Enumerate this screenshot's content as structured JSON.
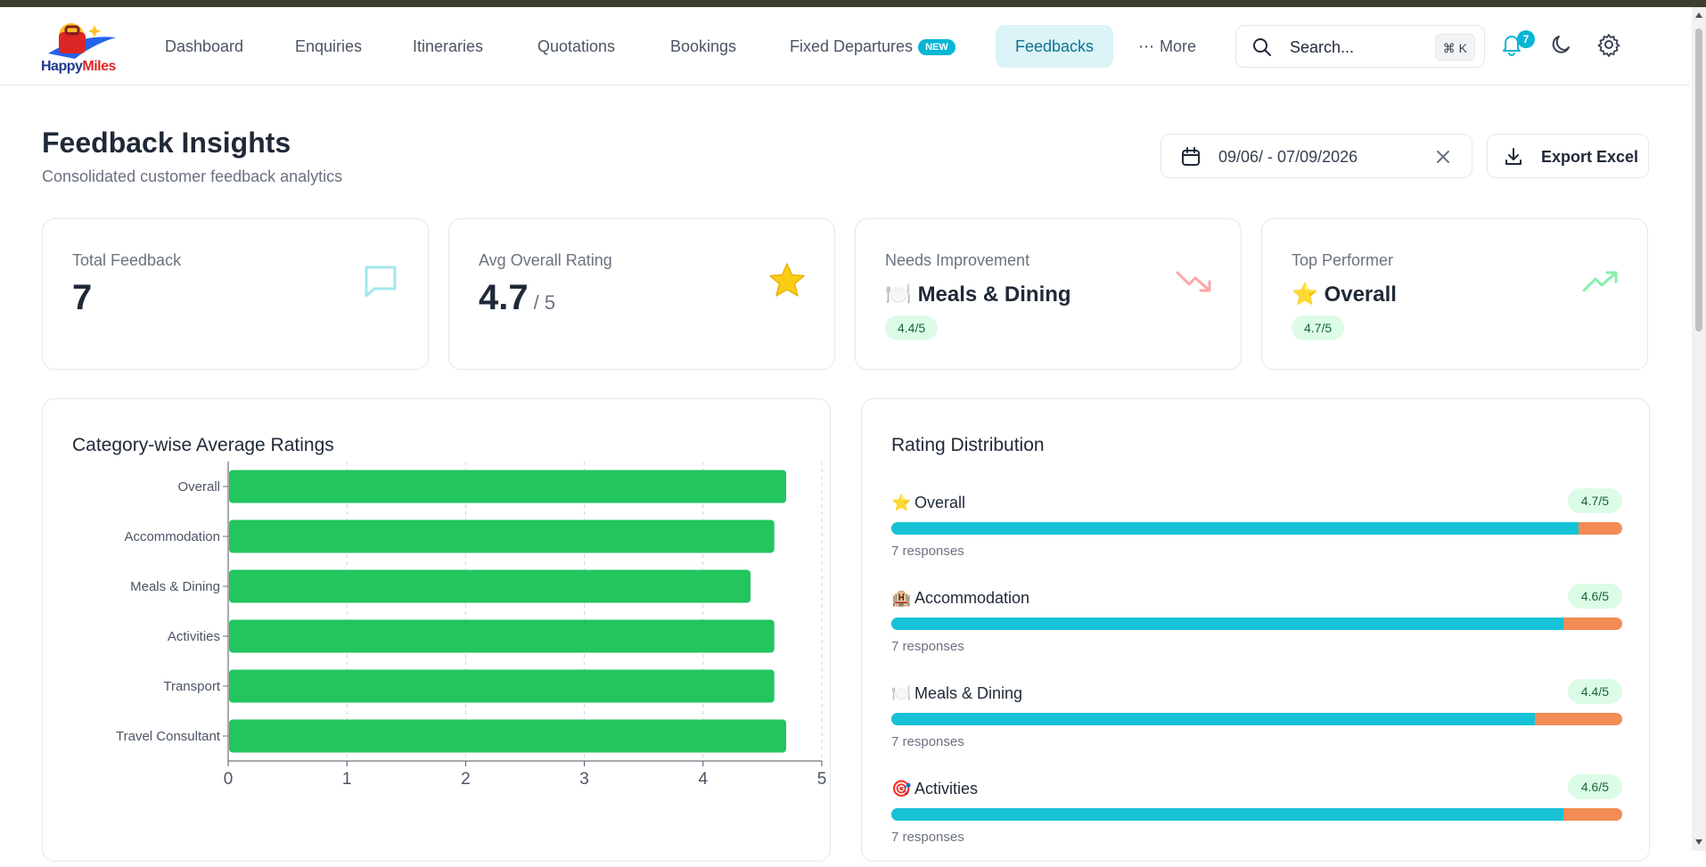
{
  "app": {
    "brand": "HappyMiles",
    "brand_a": "Happy",
    "brand_b": "Miles"
  },
  "nav": {
    "items": [
      {
        "label": "Dashboard"
      },
      {
        "label": "Enquiries"
      },
      {
        "label": "Itineraries"
      },
      {
        "label": "Quotations"
      },
      {
        "label": "Bookings"
      },
      {
        "label": "Fixed Departures",
        "badge": "NEW"
      },
      {
        "label": "Feedbacks"
      },
      {
        "label": "More"
      }
    ],
    "search_placeholder": "Search...",
    "search_shortcut": "⌘ K",
    "notification_count": "7"
  },
  "page": {
    "title": "Feedback Insights",
    "subtitle": "Consolidated customer feedback analytics",
    "date_range": "09/06/ - 07/09/2026",
    "export_label": "Export Excel"
  },
  "stats": {
    "total": {
      "label": "Total Feedback",
      "value": "7"
    },
    "avg": {
      "label": "Avg Overall Rating",
      "value": "4.7",
      "of": "/ 5"
    },
    "needs": {
      "label": "Needs Improvement",
      "emoji": "🍽️",
      "category": "Meals & Dining",
      "rating": "4.4/5"
    },
    "top": {
      "label": "Top Performer",
      "emoji": "⭐",
      "category": "Overall",
      "rating": "4.7/5"
    }
  },
  "category_panel": {
    "title": "Category-wise Average Ratings"
  },
  "distribution_panel": {
    "title": "Rating Distribution",
    "rows": [
      {
        "emoji": "⭐",
        "name": "Overall",
        "rating": "4.7/5",
        "fraction": 0.94,
        "responses": "7 responses"
      },
      {
        "emoji": "🏨",
        "name": "Accommodation",
        "rating": "4.6/5",
        "fraction": 0.92,
        "responses": "7 responses"
      },
      {
        "emoji": "🍽️",
        "name": "Meals & Dining",
        "rating": "4.4/5",
        "fraction": 0.88,
        "responses": "7 responses"
      },
      {
        "emoji": "🎯",
        "name": "Activities",
        "rating": "4.6/5",
        "fraction": 0.92,
        "responses": "7 responses"
      }
    ]
  },
  "colors": {
    "accent": "#06b6d4",
    "bar_green": "#22c55e",
    "bar_cyan": "#17c2d6",
    "bar_orange": "#f28b54"
  },
  "chart_data": {
    "type": "bar",
    "orientation": "horizontal",
    "categories": [
      "Overall",
      "Accommodation",
      "Meals & Dining",
      "Activities",
      "Transport",
      "Travel Consultant"
    ],
    "values": [
      4.7,
      4.6,
      4.4,
      4.6,
      4.6,
      4.7
    ],
    "xlim": [
      0,
      5
    ],
    "xticks": [
      "0",
      "1",
      "2",
      "3",
      "4",
      "5"
    ],
    "grid": "vertical dashed",
    "legend": "none"
  }
}
